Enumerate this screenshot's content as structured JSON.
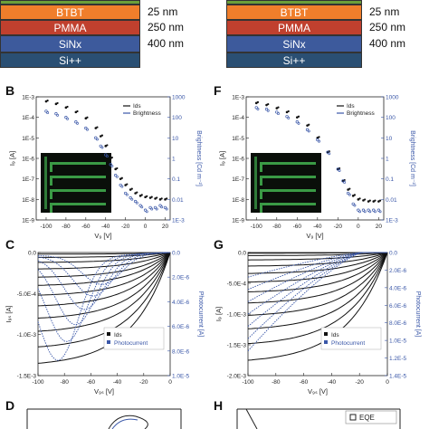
{
  "colors": {
    "btbt": "#f07e2b",
    "pmma": "#c0402e",
    "sinx": "#3d5a9c",
    "si": "#2a4f73",
    "black_series": "#111111",
    "blue_series": "#3a57a8"
  },
  "stack_left": {
    "layers": [
      {
        "name": "BTBT",
        "thickness": "25 nm"
      },
      {
        "name": "PMMA",
        "thickness": "250 nm"
      },
      {
        "name": "SiNx",
        "thickness": "400 nm"
      },
      {
        "name": "Si++",
        "thickness": ""
      }
    ]
  },
  "stack_right": {
    "layers": [
      {
        "name": "BTBT",
        "thickness": "25 nm"
      },
      {
        "name": "PMMA",
        "thickness": "250 nm"
      },
      {
        "name": "SiNx",
        "thickness": "400 nm"
      },
      {
        "name": "Si++",
        "thickness": ""
      }
    ]
  },
  "panels": {
    "B": "B",
    "F": "F",
    "C": "C",
    "G": "G",
    "D": "D",
    "H": "H"
  },
  "chart_data": [
    {
      "panel": "B",
      "type": "scatter",
      "xlabel": "V₉ [V]",
      "ylabel": "I₉ [A]",
      "ylabel_right": "Brightness [Cd m⁻²]",
      "xticks": [
        "-100",
        "-80",
        "-60",
        "-40",
        "-20",
        "0",
        "20"
      ],
      "yticks": [
        "1E-9",
        "1E-8",
        "1E-7",
        "1E-6",
        "1E-5",
        "1E-4",
        "1E-3"
      ],
      "yticks_right": [
        "1E-3",
        "0.01",
        "0.1",
        "1",
        "10",
        "100",
        "1000"
      ],
      "legend": [
        "Ids",
        "Brightness"
      ],
      "series": [
        {
          "name": "Ids",
          "x": [
            -100,
            -90,
            -80,
            -70,
            -60,
            -50,
            -45,
            -40,
            -35,
            -30,
            -25,
            -20,
            -15,
            -10,
            -5,
            0,
            5,
            10,
            15,
            20
          ],
          "y": [
            0.0006,
            0.00045,
            0.0003,
            0.00018,
            9e-05,
            3e-05,
            1.2e-05,
            4e-06,
            1e-06,
            3e-07,
            1e-07,
            5e-08,
            3e-08,
            2e-08,
            1.5e-08,
            1.3e-08,
            1.2e-08,
            1.1e-08,
            1e-08,
            1e-08
          ]
        },
        {
          "name": "Brightness",
          "x": [
            -100,
            -90,
            -80,
            -70,
            -60,
            -50,
            -45,
            -40,
            -35,
            -30,
            -25,
            -20,
            -15,
            -10,
            -5,
            0,
            5,
            10,
            15,
            20
          ],
          "y": [
            200,
            150,
            100,
            60,
            30,
            10,
            4,
            1.5,
            0.5,
            0.15,
            0.05,
            0.02,
            0.012,
            0.008,
            0.005,
            0.003,
            0.004,
            0.004,
            0.005,
            0.004
          ]
        }
      ]
    },
    {
      "panel": "F",
      "type": "scatter",
      "xlabel": "V₉ [V]",
      "ylabel": "I₉ [A]",
      "ylabel_right": "Brightness [Cd m⁻²]",
      "xticks": [
        "-100",
        "-80",
        "-60",
        "-40",
        "-20",
        "0",
        "20"
      ],
      "yticks": [
        "1E-9",
        "1E-8",
        "1E-7",
        "1E-6",
        "1E-5",
        "1E-4",
        "1E-3"
      ],
      "yticks_right": [
        "1E-3",
        "0.01",
        "0.1",
        "1",
        "10",
        "100",
        "1000"
      ],
      "legend": [
        "Ids",
        "Brightness"
      ],
      "series": [
        {
          "name": "Ids",
          "x": [
            -100,
            -90,
            -80,
            -70,
            -60,
            -50,
            -40,
            -30,
            -20,
            -15,
            -10,
            -5,
            0,
            5,
            10,
            15,
            20
          ],
          "y": [
            0.0005,
            0.0004,
            0.00028,
            0.00018,
            0.0001,
            4e-05,
            1e-05,
            2e-06,
            3e-07,
            8e-08,
            3e-08,
            1.5e-08,
            1e-08,
            9e-09,
            8e-09,
            8e-09,
            8e-09
          ]
        },
        {
          "name": "Brightness",
          "x": [
            -100,
            -90,
            -80,
            -70,
            -60,
            -50,
            -40,
            -30,
            -20,
            -15,
            -10,
            -5,
            0,
            5,
            10,
            15,
            20
          ],
          "y": [
            300,
            250,
            180,
            110,
            60,
            25,
            8,
            2,
            0.3,
            0.08,
            0.02,
            0.006,
            0.003,
            0.003,
            0.003,
            0.003,
            0.003
          ]
        }
      ]
    },
    {
      "panel": "C",
      "type": "line",
      "xlabel": "V₉ₛ [V]",
      "ylabel": "I₉ₛ [A]",
      "ylabel_right": "Photocurrent [A]",
      "xticks": [
        "-100",
        "-80",
        "-60",
        "-40",
        "-20",
        "0"
      ],
      "yticks": [
        "0.0",
        "-5.0E-4",
        "-1.0E-3",
        "-1.5E-3"
      ],
      "yticks_right": [
        "0.0",
        "2.0E-6",
        "4.0E-6",
        "6.0E-6",
        "8.0E-6",
        "1.0E-5"
      ],
      "legend": [
        "Ids",
        "Photocurrent"
      ],
      "ylim": [
        -0.0015,
        0
      ],
      "black_endpoints": [
        -2e-05,
        -6e-05,
        -0.00012,
        -0.0002,
        -0.0003,
        -0.0004,
        -0.00052,
        -0.00065,
        -0.0008,
        -0.00096,
        -0.00115,
        -0.00135
      ],
      "blue_peaks": [
        -0.0015,
        -0.00135,
        -0.0012,
        -0.00105,
        -0.0009,
        -0.00075
      ]
    },
    {
      "panel": "G",
      "type": "line",
      "xlabel": "V₉ₛ [V]",
      "ylabel": "I₉ [A]",
      "ylabel_right": "Photocurrent [A]",
      "xticks": [
        "-100",
        "-80",
        "-60",
        "-40",
        "-20",
        "0"
      ],
      "yticks": [
        "0.0",
        "-5.0E-4",
        "-1.0E-3",
        "-1.5E-3",
        "-2.0E-3"
      ],
      "yticks_right": [
        "0.0",
        "2.0E-6",
        "4.0E-6",
        "6.0E-6",
        "8.0E-6",
        "1.0E-5",
        "1.2E-5",
        "1.4E-5"
      ],
      "legend": [
        "Ids",
        "Photocurrent"
      ],
      "ylim": [
        -0.002,
        0
      ],
      "black_endpoints": [
        -1e-05,
        -5e-05,
        -0.00012,
        -0.00022,
        -0.00034,
        -0.00048,
        -0.00064,
        -0.00082,
        -0.00102,
        -0.00124,
        -0.00148,
        -0.00175
      ],
      "blue_ends": [
        -0.0016,
        -0.0014,
        -0.0012,
        -0.001,
        -0.0008,
        -0.0006,
        -0.0004
      ]
    }
  ],
  "partial_H_legend": "EQE"
}
